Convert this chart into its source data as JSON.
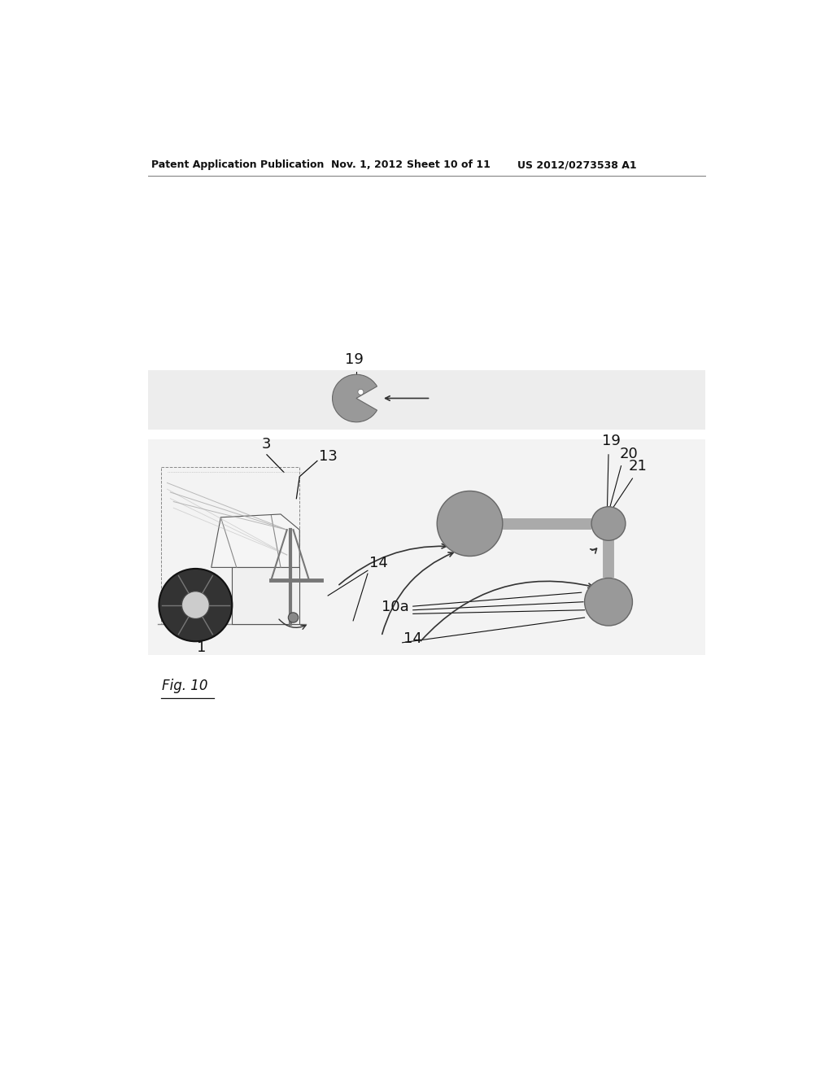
{
  "bg_color": "#ffffff",
  "header_text": "Patent Application Publication",
  "header_date": "Nov. 1, 2012",
  "header_sheet": "Sheet 10 of 11",
  "header_patent": "US 2012/0273538 A1",
  "fig_label": "Fig. 10",
  "node_color": "#999999",
  "node_edge_color": "#666666",
  "bar_color": "#aaaaaa",
  "arrow_color": "#333333",
  "text_color": "#111111",
  "pacman_color": "#999999",
  "band_color": "#dddddd",
  "band2_color": "#e8e8e8",
  "car_body_color": "#ffffff",
  "car_edge_color": "#555555",
  "wheel_color": "#333333",
  "wheel_hub_color": "#cccccc",
  "carrier_color": "#777777",
  "bike_color": "#aaaaaa"
}
